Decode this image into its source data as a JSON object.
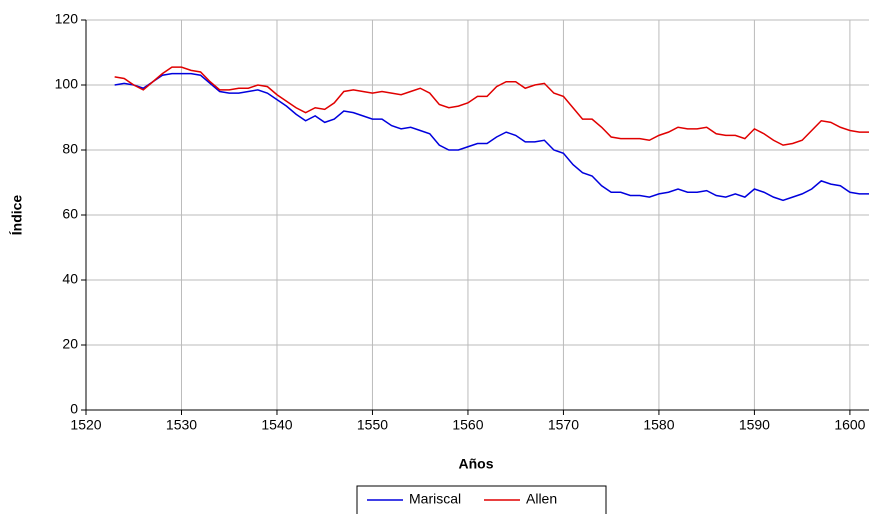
{
  "chart_data": {
    "type": "line",
    "x_label": "Años",
    "y_label": "Índice",
    "x": [
      1523,
      1524,
      1525,
      1526,
      1527,
      1528,
      1529,
      1530,
      1531,
      1532,
      1533,
      1534,
      1535,
      1536,
      1537,
      1538,
      1539,
      1540,
      1541,
      1542,
      1543,
      1544,
      1545,
      1546,
      1547,
      1548,
      1549,
      1550,
      1551,
      1552,
      1553,
      1554,
      1555,
      1556,
      1557,
      1558,
      1559,
      1560,
      1561,
      1562,
      1563,
      1564,
      1565,
      1566,
      1567,
      1568,
      1569,
      1570,
      1571,
      1572,
      1573,
      1574,
      1575,
      1576,
      1577,
      1578,
      1579,
      1580,
      1581,
      1582,
      1583,
      1584,
      1585,
      1586,
      1587,
      1588,
      1589,
      1590,
      1591,
      1592,
      1593,
      1594,
      1595,
      1596,
      1597,
      1598,
      1599,
      1600,
      1601,
      1602
    ],
    "series": [
      {
        "name": "Mariscal",
        "color": "#0000dd",
        "values": [
          100,
          100.5,
          100,
          99,
          101,
          103,
          103.5,
          103.5,
          103.5,
          103,
          100.5,
          98,
          97.5,
          97.5,
          98,
          98.5,
          97.5,
          95.5,
          93.5,
          91,
          89,
          90.5,
          88.5,
          89.5,
          92,
          91.5,
          90.5,
          89.5,
          89.5,
          87.5,
          86.5,
          87,
          86,
          85,
          81.5,
          80,
          80,
          81,
          82,
          82,
          84,
          85.5,
          84.5,
          82.5,
          82.5,
          83,
          80,
          79,
          75.5,
          73,
          72,
          69,
          67,
          67,
          66,
          66,
          65.5,
          66.5,
          67,
          68,
          67,
          67,
          67.5,
          66,
          65.5,
          66.5,
          65.5,
          68,
          67,
          65.5,
          64.5,
          65.5,
          66.5,
          68,
          70.5,
          69.5,
          69,
          67,
          66.5,
          66.5
        ]
      },
      {
        "name": "Allen",
        "color": "#e00000",
        "values": [
          102.5,
          102,
          100,
          98.5,
          101,
          103.5,
          105.5,
          105.5,
          104.5,
          104,
          101,
          98.5,
          98.5,
          99,
          99,
          100,
          99.5,
          97,
          95,
          93,
          91.5,
          93,
          92.5,
          94.5,
          98,
          98.5,
          98,
          97.5,
          98,
          97.5,
          97,
          98,
          99,
          97.5,
          94,
          93,
          93.5,
          94.5,
          96.5,
          96.5,
          99.5,
          101,
          101,
          99,
          100,
          100.5,
          97.5,
          96.5,
          93,
          89.5,
          89.5,
          87,
          84,
          83.5,
          83.5,
          83.5,
          83,
          84.5,
          85.5,
          87,
          86.5,
          86.5,
          87,
          85,
          84.5,
          84.5,
          83.5,
          86.5,
          85,
          83,
          81.5,
          82,
          83,
          86,
          89,
          88.5,
          87,
          86,
          85.5,
          85.5
        ]
      }
    ],
    "xlim": [
      1520,
      1602
    ],
    "xticks": [
      1520,
      1530,
      1540,
      1550,
      1560,
      1570,
      1580,
      1590,
      1600
    ],
    "ylim": [
      0,
      120
    ],
    "yticks": [
      0,
      20,
      40,
      60,
      80,
      100,
      120
    ],
    "grid": true,
    "legend": "bottom"
  }
}
